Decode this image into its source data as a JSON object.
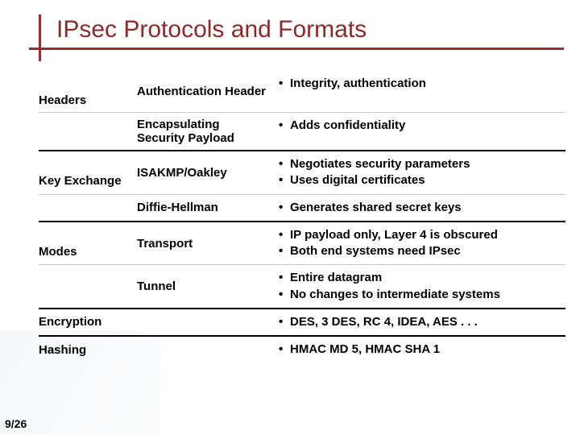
{
  "slide": {
    "title": "IPsec Protocols and Formats",
    "page_number": "9/26",
    "title_color": "#8a2a2a",
    "rule_color": "#9e2b2b"
  },
  "groups": [
    {
      "category": "Headers",
      "rows": [
        {
          "proto": "Authentication Header",
          "desc": [
            "Integrity, authentication"
          ]
        },
        {
          "proto": "Encapsulating Security Payload",
          "desc": [
            "Adds confidentiality"
          ]
        }
      ]
    },
    {
      "category": "Key Exchange",
      "rows": [
        {
          "proto": "ISAKMP/Oakley",
          "desc": [
            "Negotiates security parameters",
            "Uses digital certificates"
          ]
        },
        {
          "proto": "Diffie-Hellman",
          "desc": [
            "Generates shared secret keys"
          ]
        }
      ]
    },
    {
      "category": "Modes",
      "rows": [
        {
          "proto": "Transport",
          "desc": [
            "IP payload only, Layer 4 is obscured",
            "Both end systems need IPsec"
          ]
        },
        {
          "proto": "Tunnel",
          "desc": [
            "Entire datagram",
            "No changes to intermediate systems"
          ]
        }
      ]
    },
    {
      "category": "Encryption",
      "rows": [
        {
          "proto": "",
          "desc": [
            "DES, 3 DES, RC 4, IDEA, AES . . ."
          ]
        }
      ]
    },
    {
      "category": "Hashing",
      "rows": [
        {
          "proto": "",
          "desc": [
            "HMAC MD 5, HMAC SHA 1"
          ]
        }
      ]
    }
  ]
}
